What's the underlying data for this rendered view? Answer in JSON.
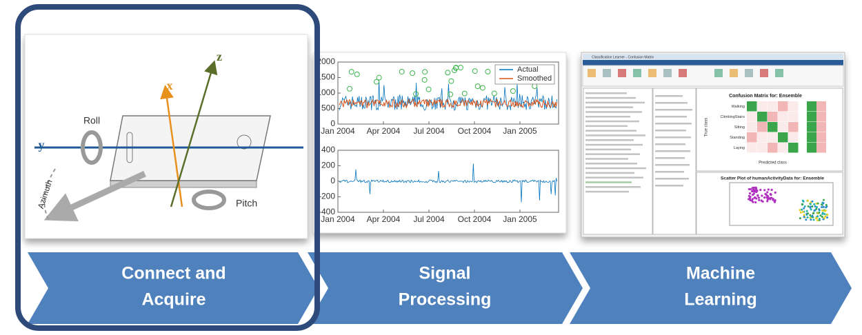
{
  "stages": [
    {
      "label_lines": [
        "Connect and",
        "Acquire"
      ],
      "image": {
        "axes": {
          "x": "x",
          "y": "y",
          "z": "z"
        },
        "rotations": {
          "roll": "Roll",
          "pitch": "Pitch",
          "azimuth": "Azimuth"
        }
      }
    },
    {
      "label_lines": [
        "Signal",
        "Processing"
      ],
      "plot_top": {
        "yticks": [
          0,
          500,
          1000,
          1500,
          2000
        ],
        "xticks": [
          "Jan 2004",
          "Apr 2004",
          "Jul 2004",
          "Oct 2004",
          "Jan 2005"
        ],
        "legend": [
          "Actual",
          "Smoothed"
        ]
      },
      "plot_bottom": {
        "yticks": [
          -400,
          -200,
          0,
          200,
          400
        ],
        "xticks": [
          "Jan 2004",
          "Apr 2004",
          "Jul 2004",
          "Oct 2004",
          "Jan 2005"
        ]
      }
    },
    {
      "label_lines": [
        "Machine",
        "Learning"
      ],
      "window": {
        "title": "Classification Learner - Confusion Matrix",
        "matrix_title": "Confusion Matrix for: Ensemble",
        "classes": [
          "Walking",
          "ClimbingStairs",
          "Sitting",
          "Standing",
          "Laying"
        ],
        "true_class_label": "True class",
        "predicted_class_label": "Predicted class",
        "scatter_title": "Scatter Plot of humanActivityData for: Ensemble"
      }
    }
  ]
}
